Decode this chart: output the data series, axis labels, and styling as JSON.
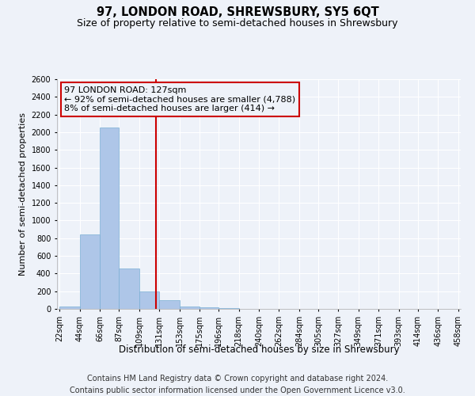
{
  "title": "97, LONDON ROAD, SHREWSBURY, SY5 6QT",
  "subtitle": "Size of property relative to semi-detached houses in Shrewsbury",
  "xlabel": "Distribution of semi-detached houses by size in Shrewsbury",
  "ylabel": "Number of semi-detached properties",
  "footer_line1": "Contains HM Land Registry data © Crown copyright and database right 2024.",
  "footer_line2": "Contains public sector information licensed under the Open Government Licence v3.0.",
  "annotation_line1": "97 LONDON ROAD: 127sqm",
  "annotation_line2": "← 92% of semi-detached houses are smaller (4,788)",
  "annotation_line3": "8% of semi-detached houses are larger (414) →",
  "property_size": 127,
  "bar_edges": [
    22,
    44,
    66,
    87,
    109,
    131,
    153,
    175,
    196,
    218,
    240,
    262,
    284,
    305,
    327,
    349,
    371,
    393,
    414,
    436,
    458
  ],
  "bar_heights": [
    30,
    840,
    2050,
    460,
    200,
    95,
    30,
    20,
    5,
    2,
    1,
    0,
    0,
    0,
    0,
    0,
    0,
    0,
    0,
    0
  ],
  "bar_color": "#aec6e8",
  "bar_edgecolor": "#7aafd4",
  "vline_color": "#cc0000",
  "annotation_box_edgecolor": "#cc0000",
  "background_color": "#eef2f9",
  "grid_color": "#ffffff",
  "ylim": [
    0,
    2600
  ],
  "yticks": [
    0,
    200,
    400,
    600,
    800,
    1000,
    1200,
    1400,
    1600,
    1800,
    2000,
    2200,
    2400,
    2600
  ],
  "title_fontsize": 10.5,
  "subtitle_fontsize": 9,
  "xlabel_fontsize": 8.5,
  "ylabel_fontsize": 8,
  "tick_fontsize": 7,
  "annotation_fontsize": 8,
  "footer_fontsize": 7
}
